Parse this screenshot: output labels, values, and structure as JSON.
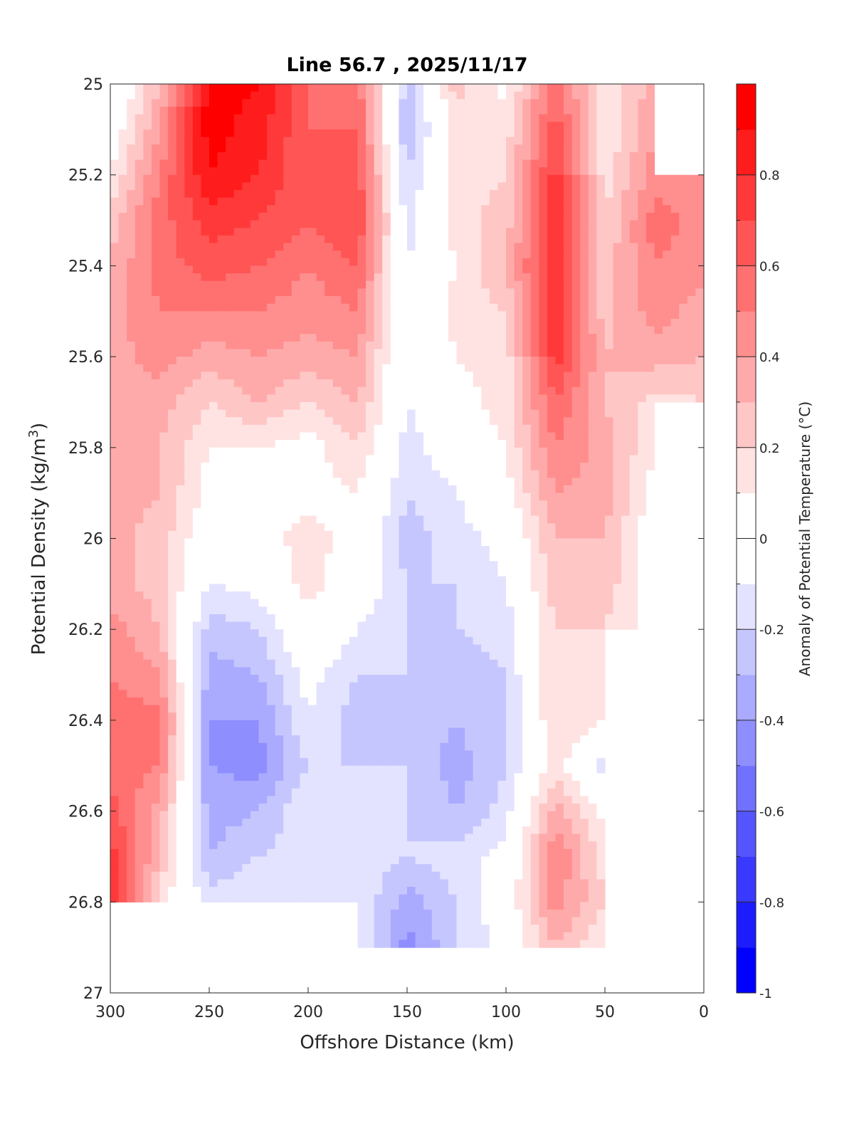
{
  "chart_data": {
    "type": "heatmap",
    "subtype": "filled-contour",
    "title": "Line 56.7 , 2025/11/17",
    "xlabel": "Offshore Distance (km)",
    "ylabel": {
      "text": "Potential Density (kg/m",
      "sup": "3",
      "suffix": ")"
    },
    "colorbar_label": "Anomaly of Potential Temperature (°C)",
    "xlim": [
      300,
      0
    ],
    "ylim": [
      25,
      27
    ],
    "x_ticks": [
      "300",
      "250",
      "200",
      "150",
      "100",
      "50",
      "0"
    ],
    "y_ticks": [
      "25",
      "25.2",
      "25.4",
      "25.6",
      "25.8",
      "26",
      "26.2",
      "26.4",
      "26.6",
      "26.8",
      "27"
    ],
    "colorbar_range": [
      -1,
      1
    ],
    "colorbar_step": 0.1,
    "colorbar_ticks": [
      "0.8",
      "0.6",
      "0.4",
      "0.2",
      "0",
      "-0.2",
      "-0.4",
      "-0.6",
      "-0.8",
      "-1"
    ],
    "colors": {
      "positive": "#ff0000",
      "negative": "#0000ff",
      "zero": "#ffffff"
    },
    "x": [
      300,
      275,
      250,
      225,
      200,
      175,
      150,
      125,
      100,
      75,
      50,
      25,
      0
    ],
    "y": [
      25.0,
      25.1,
      25.2,
      25.3,
      25.4,
      25.5,
      25.6,
      25.7,
      25.8,
      25.9,
      26.0,
      26.1,
      26.2,
      26.3,
      26.4,
      26.5,
      26.6,
      26.7,
      26.8,
      26.9
    ],
    "values_by_x": [
      [
        -0.1,
        0,
        0.1,
        0.25,
        0.3,
        0.35,
        0.35,
        0.35,
        0.35,
        0.35,
        0.35,
        0.35,
        0.45,
        0.5,
        0.55,
        0.55,
        0.65,
        0.75,
        0.75,
        null
      ],
      [
        0.3,
        0.4,
        0.5,
        0.55,
        0.55,
        0.5,
        0.45,
        0.35,
        0.3,
        0.3,
        0.25,
        0.25,
        0.3,
        0.4,
        0.55,
        0.5,
        0.35,
        0.3,
        0.15,
        null
      ],
      [
        0.95,
        0.95,
        0.9,
        0.75,
        0.65,
        0.5,
        0.35,
        0.2,
        0.1,
        0.05,
        0.0,
        -0.1,
        -0.25,
        -0.35,
        -0.4,
        -0.4,
        -0.35,
        -0.3,
        -0.15,
        null
      ],
      [
        0.9,
        0.85,
        0.8,
        0.7,
        0.6,
        0.5,
        0.4,
        0.3,
        0.1,
        0.05,
        0.05,
        -0.05,
        -0.2,
        -0.3,
        -0.4,
        -0.45,
        -0.3,
        -0.2,
        -0.1,
        null
      ],
      [
        0.6,
        0.6,
        0.6,
        0.6,
        0.5,
        0.45,
        0.35,
        0.2,
        0.05,
        0.05,
        0.15,
        0.15,
        0.05,
        -0.05,
        -0.1,
        -0.2,
        -0.1,
        -0.15,
        -0.2,
        null
      ],
      [
        0.55,
        0.6,
        0.65,
        0.7,
        0.6,
        0.5,
        0.4,
        0.3,
        0.2,
        0.1,
        0.05,
        0.0,
        -0.1,
        -0.2,
        -0.25,
        -0.2,
        -0.1,
        -0.15,
        -0.1,
        -0.1
      ],
      [
        -0.25,
        -0.3,
        -0.2,
        -0.15,
        -0.1,
        -0.1,
        -0.1,
        -0.1,
        -0.15,
        -0.2,
        -0.25,
        -0.2,
        -0.2,
        -0.2,
        -0.25,
        -0.2,
        -0.2,
        -0.2,
        -0.35,
        -0.45
      ],
      [
        0.25,
        0.15,
        0.15,
        0.15,
        0.1,
        0.15,
        0.1,
        0.05,
        0.0,
        -0.1,
        -0.15,
        -0.2,
        -0.2,
        -0.25,
        -0.3,
        -0.35,
        -0.3,
        -0.15,
        -0.2,
        -0.2
      ],
      [
        0.05,
        0.15,
        0.2,
        0.25,
        0.3,
        0.2,
        0.15,
        0.15,
        0.1,
        0.05,
        -0.05,
        -0.1,
        -0.15,
        -0.2,
        -0.2,
        -0.2,
        -0.15,
        -0.05,
        0.0,
        -0.05
      ],
      [
        0.6,
        0.65,
        0.75,
        0.75,
        0.8,
        0.8,
        0.75,
        0.6,
        0.5,
        0.4,
        0.3,
        0.25,
        0.2,
        0.2,
        0.2,
        0.15,
        0.35,
        0.5,
        0.45,
        0.3
      ],
      [
        0.1,
        0.1,
        0.15,
        0.2,
        0.25,
        0.25,
        0.3,
        0.3,
        0.35,
        0.35,
        0.3,
        0.25,
        0.2,
        0.15,
        0.1,
        -0.15,
        0.05,
        0.15,
        0.2,
        0.1
      ],
      [
        0.35,
        0.4,
        0.45,
        0.55,
        0.5,
        0.45,
        0.35,
        0.15,
        0.1,
        0.05,
        0.0,
        0.05,
        0.05,
        null,
        null,
        null,
        null,
        null,
        null,
        null
      ],
      [
        null,
        null,
        0.4,
        0.45,
        0.45,
        0.35,
        0.3,
        0.2,
        null,
        null,
        null,
        null,
        null,
        null,
        null,
        null,
        null,
        null,
        null,
        null
      ]
    ]
  }
}
